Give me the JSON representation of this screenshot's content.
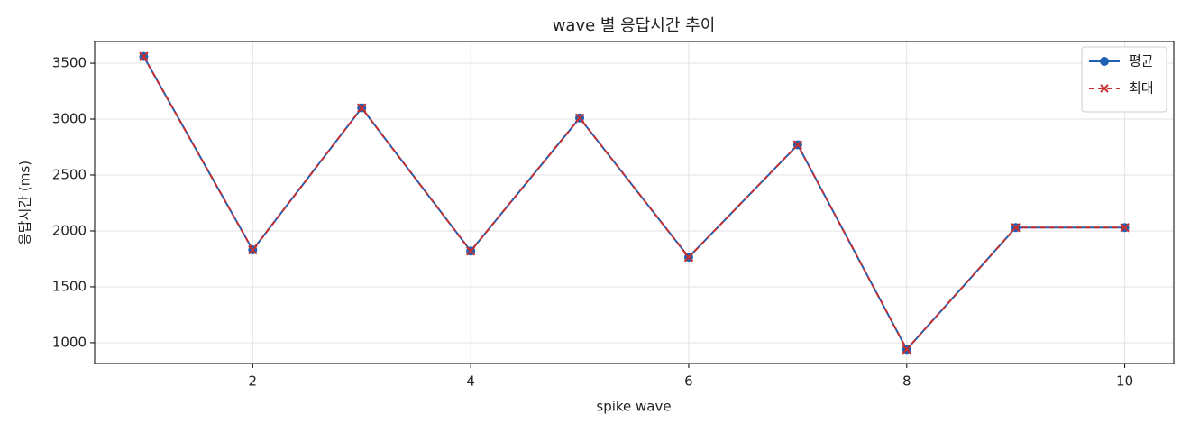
{
  "chart_data": {
    "type": "line",
    "title": "wave 별 응답시간 추이",
    "x_label": "spike wave",
    "y_label": "응답시간 (ms)",
    "x": [
      1,
      2,
      3,
      4,
      5,
      6,
      7,
      8,
      9,
      10
    ],
    "series": [
      {
        "name": "평균",
        "color": "#1f5fb4",
        "marker": "o",
        "dash": false,
        "values": [
          3560,
          1830,
          3100,
          1820,
          3010,
          1765,
          2770,
          940,
          2030,
          2030
        ]
      },
      {
        "name": "최대",
        "color": "#c62f2f",
        "marker": "x",
        "dash": true,
        "values": [
          3560,
          1830,
          3100,
          1820,
          3010,
          1765,
          2770,
          940,
          2030,
          2030
        ]
      }
    ],
    "xlim": [
      0.55,
      10.45
    ],
    "ylim": [
      814,
      3694
    ],
    "xticks": [
      2,
      4,
      6,
      8,
      10
    ],
    "yticks": [
      1000,
      1500,
      2000,
      2500,
      3000,
      3500
    ],
    "grid": true,
    "legend": "upper right"
  }
}
